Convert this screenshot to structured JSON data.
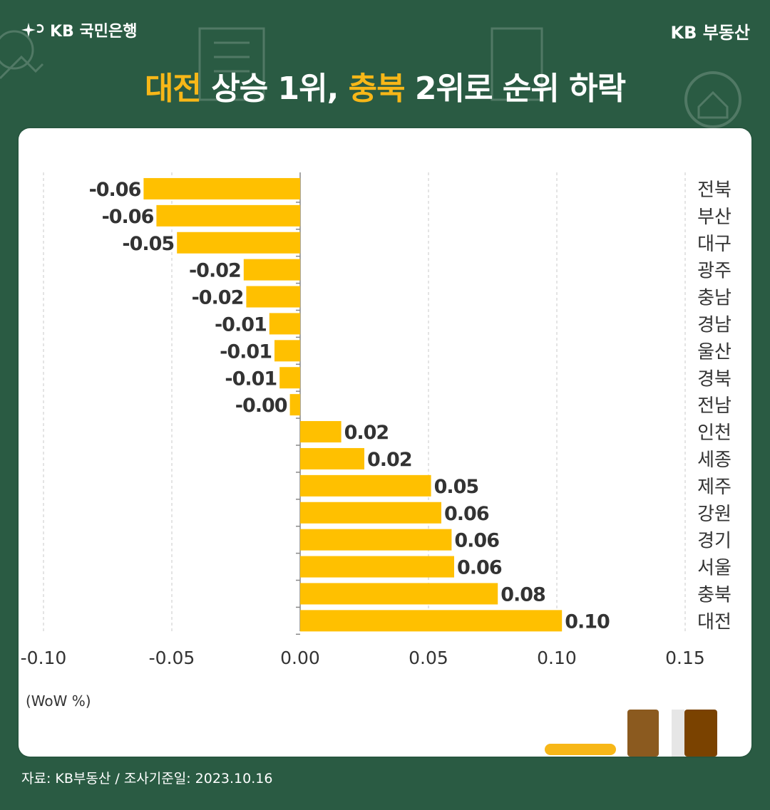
{
  "header": {
    "bank_name": "KB 국민은행",
    "brand_right": "KB 부동산",
    "title_parts": [
      "대전",
      " 상승 1위, ",
      "충북",
      " 2위로 순위 하락"
    ]
  },
  "footer": {
    "source": "자료: KB부동산 / 조사기준일: 2023.10.16"
  },
  "colors": {
    "background": "#2a5b43",
    "bar": "#ffc000",
    "highlight": "#f7b718"
  },
  "chart_data": {
    "type": "bar",
    "orientation": "horizontal",
    "unit": "(WoW %)",
    "categories": [
      "전북",
      "부산",
      "대구",
      "광주",
      "충남",
      "경남",
      "울산",
      "경북",
      "전남",
      "인천",
      "세종",
      "제주",
      "강원",
      "경기",
      "서울",
      "충북",
      "대전"
    ],
    "values": [
      -0.061,
      -0.056,
      -0.048,
      -0.022,
      -0.021,
      -0.012,
      -0.01,
      -0.008,
      -0.004,
      0.016,
      0.025,
      0.051,
      0.055,
      0.059,
      0.06,
      0.077,
      0.102
    ],
    "labels": [
      "-0.06",
      "-0.06",
      "-0.05",
      "-0.02",
      "-0.02",
      "-0.01",
      "-0.01",
      "-0.01",
      "-0.00",
      "0.02",
      "0.02",
      "0.05",
      "0.06",
      "0.06",
      "0.06",
      "0.08",
      "0.10"
    ],
    "xticks": [
      "-0.10",
      "-0.05",
      "0.00",
      "0.05",
      "0.10",
      "0.15"
    ],
    "xlim": [
      -0.1,
      0.15
    ],
    "grid": true
  }
}
